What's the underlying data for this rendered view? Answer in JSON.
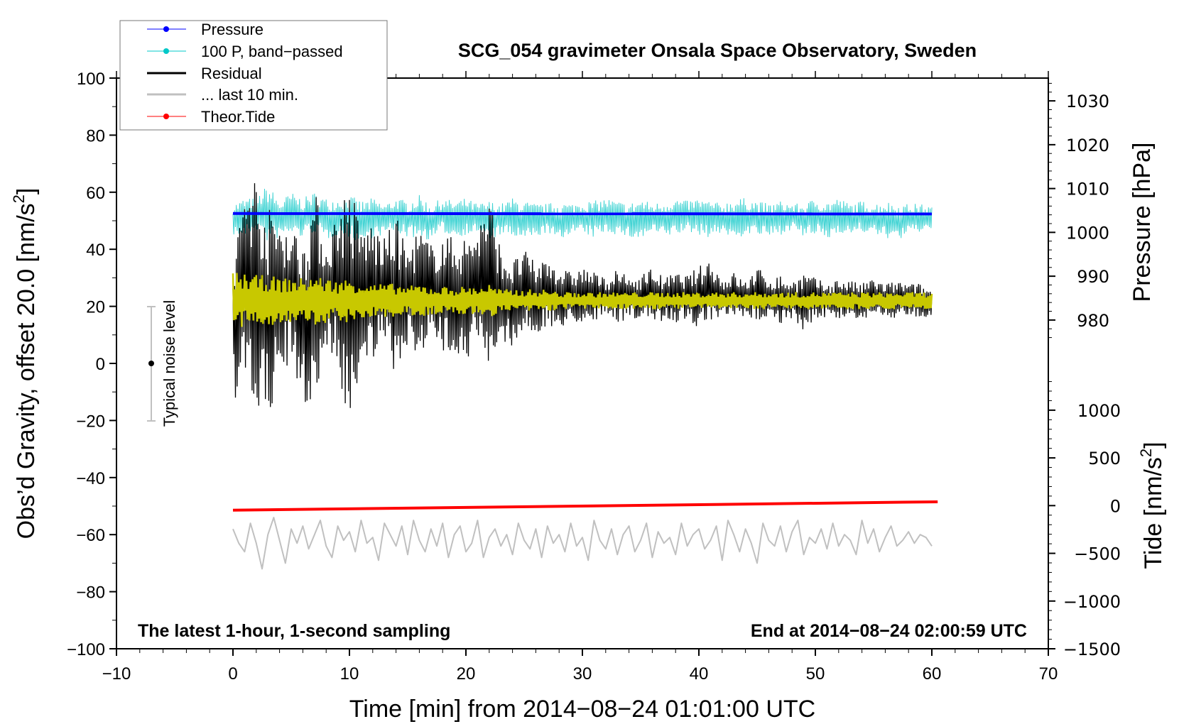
{
  "chart_data": {
    "type": "line",
    "title": "SCG_054 gravimeter Onsala Space Observatory, Sweden",
    "xlabel": "Time [min] from 2014−08−24 01:01:00 UTC",
    "ylabel_main": "Obs’d Gravity, offset 20.0 [nm/s",
    "ylabel_sup": "2",
    "ylabel_close": "]",
    "ylabel_pressure": "Pressure [hPa]",
    "ylabel_tide_main": "Tide [nm/s",
    "ylabel_tide_sup": "2",
    "ylabel_tide_close": "]",
    "xlim": [
      -10,
      70
    ],
    "ylim": [
      -100,
      100
    ],
    "xticks": [
      -10,
      0,
      10,
      20,
      30,
      40,
      50,
      60,
      70
    ],
    "xtick_labels": [
      "−10",
      "0",
      "10",
      "20",
      "30",
      "40",
      "50",
      "60",
      "70"
    ],
    "yticks": [
      -100,
      -80,
      -60,
      -40,
      -20,
      0,
      20,
      40,
      60,
      80,
      100
    ],
    "ytick_labels": [
      "−100",
      "−80",
      "−60",
      "−40",
      "−20",
      "0",
      "20",
      "40",
      "60",
      "80",
      "100"
    ],
    "pressure_axis": {
      "range": [
        905,
        1035.2
      ],
      "ticks": [
        980,
        990,
        1000,
        1010,
        1020,
        1030
      ],
      "tick_labels": [
        "980",
        "990",
        "1000",
        "1010",
        "1020",
        "1030"
      ]
    },
    "tide_axis": {
      "range": [
        -1500,
        4480
      ],
      "ticks": [
        -1500,
        -1000,
        -500,
        0,
        500,
        1000
      ],
      "tick_labels": [
        "−1500",
        "−1000",
        "−500",
        "0",
        "500",
        "1000"
      ]
    },
    "grid": false,
    "legend_placement": "top-left",
    "legend": [
      {
        "label": "Pressure",
        "color": "#0000ff",
        "marker": true
      },
      {
        "label": "100 P, band−passed",
        "color": "#00c8c8",
        "marker": true
      },
      {
        "label": "Residual",
        "color": "#000000",
        "marker": false
      },
      {
        "label": "... last 10 min.",
        "color": "#c0c0c0",
        "marker": false
      },
      {
        "label": "Theor.Tide",
        "color": "#ff0000",
        "marker": true
      }
    ],
    "annotations": {
      "left": "The latest 1-hour, 1-second sampling",
      "right": "End at 2014−08−24 02:00:59 UTC",
      "noise_label": "Typical noise level"
    },
    "noise_bar": {
      "x": -7,
      "center": 0,
      "low": -20,
      "high": 20
    },
    "series": {
      "pressure": {
        "name": "Pressure",
        "color": "#0000ff",
        "axis": "pressure",
        "x": [
          0,
          60
        ],
        "values": [
          1004.3,
          1004.2
        ]
      },
      "tide": {
        "name": "Theor.Tide",
        "color": "#ff0000",
        "axis": "tide",
        "x": [
          0,
          60.5
        ],
        "values": [
          -48,
          40
        ]
      },
      "bandpassed_envelope": {
        "name": "100 P, band-passed",
        "color": "#3cd2d2",
        "axis": "gravity",
        "x_start": 0,
        "x_step": 1,
        "upper": [
          56,
          58,
          58,
          63,
          57,
          60,
          58,
          60,
          58,
          58,
          59,
          57,
          58,
          56,
          58,
          57,
          59,
          56,
          58,
          57,
          58,
          56,
          57,
          56,
          58,
          57,
          56,
          56,
          57,
          56,
          57,
          57,
          58,
          57,
          56,
          58,
          56,
          57,
          58,
          57,
          58,
          57,
          56,
          58,
          58,
          57,
          56,
          57,
          56,
          56,
          58,
          57,
          58,
          56,
          57,
          56,
          57,
          56,
          56,
          56,
          55
        ],
        "lower": [
          45,
          44,
          47,
          42,
          44,
          45,
          44,
          46,
          43,
          45,
          44,
          42,
          44,
          45,
          46,
          44,
          44,
          43,
          46,
          44,
          45,
          46,
          43,
          45,
          44,
          43,
          44,
          46,
          42,
          46,
          45,
          44,
          46,
          45,
          44,
          43,
          46,
          44,
          45,
          46,
          45,
          44,
          46,
          43,
          45,
          45,
          44,
          45,
          47,
          44,
          45,
          43,
          46,
          45,
          46,
          45,
          44,
          43,
          45,
          46,
          47
        ]
      },
      "residual_envelope": {
        "name": "Residual",
        "color": "#000000",
        "axis": "gravity",
        "x_start": 0,
        "x_step": 1,
        "upper": [
          33,
          67,
          67,
          55,
          52,
          48,
          45,
          62,
          42,
          55,
          65,
          48,
          50,
          44,
          52,
          40,
          48,
          42,
          46,
          44,
          45,
          48,
          60,
          40,
          36,
          40,
          35,
          38,
          34,
          32,
          34,
          32,
          30,
          33,
          30,
          31,
          34,
          30,
          32,
          31,
          34,
          37,
          30,
          32,
          29,
          34,
          30,
          31,
          29,
          32,
          30,
          28,
          30,
          29,
          28,
          30,
          28,
          29,
          28,
          28,
          26
        ],
        "lower": [
          -12,
          -15,
          -16,
          -22,
          -3,
          0,
          -15,
          -15,
          5,
          0,
          -28,
          2,
          0,
          5,
          -5,
          6,
          3,
          8,
          2,
          5,
          0,
          10,
          -12,
          8,
          6,
          10,
          10,
          12,
          12,
          14,
          14,
          15,
          16,
          14,
          16,
          15,
          14,
          15,
          14,
          16,
          12,
          14,
          15,
          16,
          15,
          15,
          16,
          14,
          15,
          11,
          16,
          16,
          15,
          16,
          15,
          17,
          16,
          15,
          17,
          16,
          16
        ]
      },
      "filtered_envelope": {
        "color": "#c8c800",
        "axis": "gravity",
        "x_start": 0,
        "x_step": 1,
        "center": 22,
        "amplitude": [
          10,
          10,
          9,
          9,
          8,
          8,
          8,
          9,
          8,
          7,
          8,
          7,
          6,
          6,
          6,
          5,
          6,
          5,
          5,
          5,
          5,
          5,
          6,
          4,
          4,
          4,
          4,
          4,
          3,
          3,
          3,
          3,
          3,
          3,
          3,
          3,
          3,
          3,
          3,
          3,
          3,
          3,
          3,
          3,
          3,
          3,
          3,
          3,
          3,
          3,
          3,
          3,
          3,
          3,
          3,
          3,
          3,
          3,
          3,
          3,
          3
        ]
      },
      "last10": {
        "name": "... last 10 min.",
        "color": "#c0c0c0",
        "axis": "gravity",
        "x_range": [
          0,
          60
        ],
        "values": [
          -58,
          -63,
          -66,
          -56,
          -63,
          -72,
          -60,
          -54,
          -62,
          -70,
          -58,
          -63,
          -57,
          -65,
          -60,
          -55,
          -64,
          -68,
          -57,
          -62,
          -59,
          -66,
          -55,
          -63,
          -61,
          -69,
          -56,
          -60,
          -64,
          -57,
          -67,
          -55,
          -62,
          -66,
          -58,
          -64,
          -56,
          -68,
          -60,
          -57,
          -66,
          -63,
          -55,
          -68,
          -61,
          -58,
          -64,
          -60,
          -67,
          -56,
          -62,
          -65,
          -58,
          -68,
          -57,
          -63,
          -60,
          -66,
          -56,
          -64,
          -61,
          -69,
          -55,
          -62,
          -65,
          -58,
          -67,
          -60,
          -57,
          -66,
          -62,
          -56,
          -68,
          -59,
          -63,
          -61,
          -67,
          -56,
          -64,
          -60,
          -58,
          -65,
          -62,
          -57,
          -69,
          -55,
          -60,
          -66,
          -58,
          -63,
          -70,
          -56,
          -62,
          -64,
          -57,
          -66,
          -59,
          -55,
          -67,
          -61,
          -63,
          -58,
          -65,
          -56,
          -64,
          -60,
          -62,
          -67,
          -55,
          -63,
          -58,
          -66,
          -61,
          -57,
          -64,
          -62,
          -59,
          -63,
          -60,
          -61,
          -64
        ]
      }
    }
  }
}
